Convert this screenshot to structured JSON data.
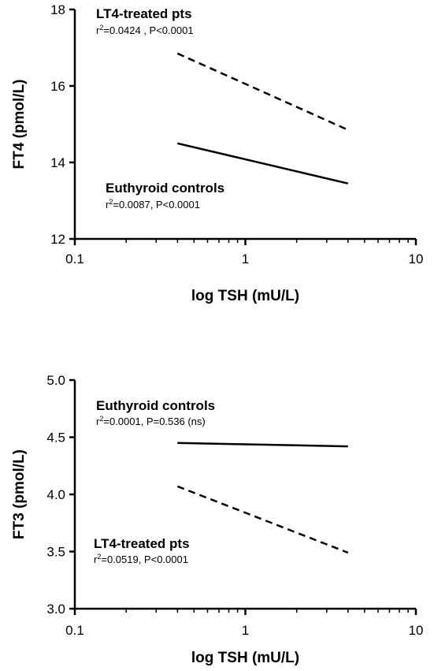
{
  "chart_data": [
    {
      "type": "line",
      "xscale": "log",
      "xlim": [
        0.1,
        10
      ],
      "ylim": [
        12,
        18
      ],
      "xticks": [
        "0.1",
        "1",
        "10"
      ],
      "yticks": [
        "12",
        "14",
        "16",
        "18"
      ],
      "xlabel": "log TSH (mU/L)",
      "ylabel": "FT4 (pmol/L)",
      "series": [
        {
          "x": [
            0.4,
            4.0
          ],
          "y": [
            16.85,
            14.85
          ],
          "style": "dashed"
        },
        {
          "x": [
            0.4,
            4.0
          ],
          "y": [
            14.5,
            13.45
          ],
          "style": "solid"
        }
      ],
      "annotations": [
        {
          "title": "LT4-treated pts",
          "stat_prefix": "r",
          "stat_sup": "2",
          "stat_rest": "=0.0424 , P<0.0001"
        },
        {
          "title": "Euthyroid controls",
          "stat_prefix": "r",
          "stat_sup": "2",
          "stat_rest": "=0.0087, P<0.0001"
        }
      ]
    },
    {
      "type": "line",
      "xscale": "log",
      "xlim": [
        0.1,
        10
      ],
      "ylim": [
        3.0,
        5.0
      ],
      "xticks": [
        "0.1",
        "1",
        "10"
      ],
      "yticks": [
        "3.0",
        "3.5",
        "4.0",
        "4.5",
        "5.0"
      ],
      "xlabel": "log TSH (mU/L)",
      "ylabel": "FT3 (pmol/L)",
      "series": [
        {
          "x": [
            0.4,
            4.0
          ],
          "y": [
            4.45,
            4.42
          ],
          "style": "solid"
        },
        {
          "x": [
            0.4,
            4.0
          ],
          "y": [
            4.07,
            3.49
          ],
          "style": "dashed"
        }
      ],
      "annotations": [
        {
          "title": "Euthyroid controls",
          "stat_prefix": "r",
          "stat_sup": "2",
          "stat_rest": "=0.0001, P=0.536 (ns)"
        },
        {
          "title": "LT4-treated pts",
          "stat_prefix": "r",
          "stat_sup": "2",
          "stat_rest": "=0.0519,  P<0.0001"
        }
      ]
    }
  ]
}
